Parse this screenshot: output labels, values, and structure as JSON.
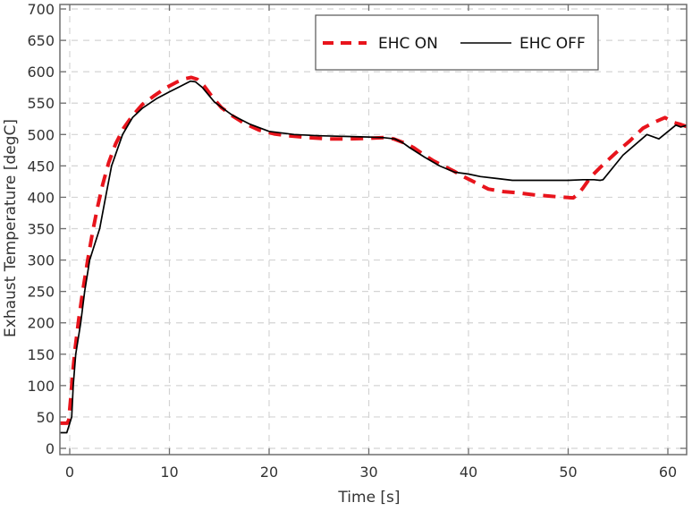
{
  "chart_data": {
    "type": "line",
    "title": "",
    "xlabel": "Time [s]",
    "ylabel": "Exhaust Temperature [degC]",
    "xlim": [
      -1,
      62
    ],
    "ylim": [
      -10,
      705
    ],
    "xticks": [
      0,
      10,
      20,
      30,
      40,
      50,
      60
    ],
    "yticks": [
      0,
      50,
      100,
      150,
      200,
      250,
      300,
      350,
      400,
      450,
      500,
      550,
      600,
      650,
      700
    ],
    "grid": true,
    "legend_position": "upper right",
    "series": [
      {
        "name": "EHC ON",
        "style": "dashed",
        "color": "#e8141c",
        "x": [
          -1,
          -0.25,
          -0.1,
          0.1,
          0.3,
          0.55,
          0.9,
          1.3,
          1.8,
          2.3,
          2.8,
          3.3,
          3.9,
          4.6,
          5.4,
          6.3,
          7.3,
          8.5,
          9.6,
          10.8,
          11.6,
          12.2,
          12.8,
          13.5,
          14.3,
          15.2,
          16.3,
          17.5,
          19,
          20.5,
          22,
          24,
          26,
          28,
          30,
          31.5,
          32.5,
          33.5,
          34.5,
          35.5,
          36.5,
          37.5,
          38.5,
          39.5,
          40.5,
          42,
          43.5,
          45,
          46.5,
          48,
          49.5,
          50.5,
          51,
          51.5,
          52.3,
          53.5,
          54.8,
          56.2,
          57.5,
          58.7,
          59.7,
          60.6,
          61.3,
          62
        ],
        "y": [
          40,
          40,
          45,
          80,
          120,
          160,
          205,
          250,
          300,
          345,
          385,
          420,
          455,
          485,
          510,
          530,
          548,
          562,
          574,
          584,
          589,
          591,
          588,
          577,
          560,
          543,
          530,
          518,
          507,
          501,
          498,
          495,
          493,
          493,
          494,
          495,
          493,
          487,
          479,
          468,
          458,
          450,
          442,
          433,
          425,
          413,
          409,
          407,
          404,
          402,
          400,
          399,
          405,
          415,
          433,
          452,
          471,
          490,
          510,
          520,
          527,
          519,
          516,
          512
        ]
      },
      {
        "name": "EHC OFF",
        "style": "solid",
        "color": "#000000",
        "x": [
          -1,
          -0.3,
          0.2,
          0.35,
          0.6,
          1.1,
          1.5,
          2.0,
          2.5,
          3.0,
          3.6,
          4.2,
          5.3,
          6.3,
          7.3,
          8.7,
          10,
          11,
          12.1,
          12.6,
          13.3,
          14.5,
          15.5,
          16.3,
          18,
          20,
          22.5,
          25,
          27.5,
          30,
          31.5,
          32.6,
          33.4,
          34.1,
          35.6,
          37.1,
          38.6,
          40,
          41.2,
          42.8,
          44.4,
          46,
          48,
          50,
          51.5,
          52.6,
          53.2,
          53.5,
          55.5,
          57.9,
          59.1,
          60.8,
          61.3,
          62
        ],
        "y": [
          25,
          25,
          50,
          100,
          150,
          200,
          250,
          300,
          325,
          350,
          400,
          450,
          500,
          527,
          542,
          557,
          568,
          576,
          585,
          584,
          575,
          552,
          540,
          531,
          517,
          505,
          500,
          498,
          497,
          496,
          495,
          493,
          487,
          479,
          464,
          450,
          440,
          437,
          433,
          430,
          427,
          427,
          427,
          427,
          428,
          428,
          427,
          428,
          467,
          500,
          493,
          515,
          512,
          515
        ]
      }
    ]
  },
  "legend": {
    "items": [
      {
        "label": "EHC ON"
      },
      {
        "label": "EHC OFF"
      }
    ]
  }
}
